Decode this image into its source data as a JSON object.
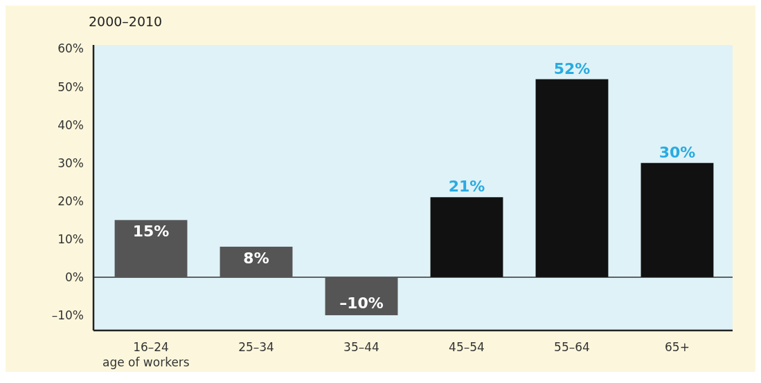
{
  "chart_data": {
    "type": "bar",
    "title": "2000–2010",
    "xlabel": "age of workers",
    "categories": [
      "16–24",
      "25–34",
      "35–44",
      "45–54",
      "55–64",
      "65+"
    ],
    "values": [
      15,
      8,
      -10,
      21,
      52,
      30
    ],
    "colors": [
      "#555555",
      "#555555",
      "#555555",
      "#111111",
      "#111111",
      "#111111"
    ],
    "value_labels": [
      "15%",
      "8%",
      "–10%",
      "21%",
      "52%",
      "30%"
    ],
    "ylim": [
      -14,
      61
    ],
    "yticks": [
      {
        "value": -10,
        "label": "–10%"
      },
      {
        "value": 0,
        "label": "0%"
      },
      {
        "value": 10,
        "label": "10%"
      },
      {
        "value": 20,
        "label": "20%"
      },
      {
        "value": 30,
        "label": "30%"
      },
      {
        "value": 40,
        "label": "40%"
      },
      {
        "value": 50,
        "label": "50%"
      },
      {
        "value": 60,
        "label": "60%"
      }
    ],
    "ref_lines": [
      {
        "axis": "y",
        "value": 0,
        "color": "#333333"
      }
    ],
    "grid": false
  }
}
